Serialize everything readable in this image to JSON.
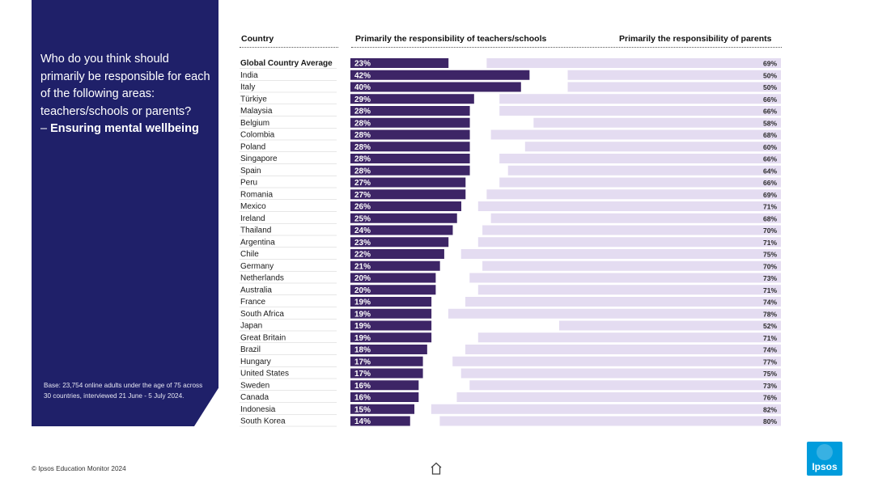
{
  "question": {
    "line1": "Who do you think should primarily be responsible for each of the following areas: teachers/schools or parents?",
    "line2_prefix": "–",
    "line2_emph": "Ensuring mental wellbeing"
  },
  "base_note": "Base: 23,754 online adults under the age of 75 across 30 countries, interviewed 21 June - 5 July 2024.",
  "footer": {
    "copyright": "© Ipsos Education Monitor 2024"
  },
  "logo": {
    "text": "Ipsos",
    "color": "#009cdc"
  },
  "colors": {
    "teachers": "#3d2566",
    "parents": "#e4dcf1",
    "panel": "#1f2069"
  },
  "chart_data": {
    "type": "bar",
    "title": "Who do you think should primarily be responsible for each of the following areas: teachers/schools or parents? – Ensuring mental wellbeing",
    "column_headers": {
      "country": "Country",
      "teachers": "Primarily the responsibility of teachers/schools",
      "parents": "Primarily the responsibility of parents"
    },
    "categories": [
      "Global Country Average",
      "India",
      "Italy",
      "Türkiye",
      "Malaysia",
      "Belgium",
      "Colombia",
      "Poland",
      "Singapore",
      "Spain",
      "Peru",
      "Romania",
      "Mexico",
      "Ireland",
      "Thailand",
      "Argentina",
      "Chile",
      "Germany",
      "Netherlands",
      "Australia",
      "France",
      "South Africa",
      "Japan",
      "Great Britain",
      "Brazil",
      "Hungary",
      "United States",
      "Sweden",
      "Canada",
      "Indonesia",
      "South Korea"
    ],
    "series": [
      {
        "name": "Primarily the responsibility of teachers/schools",
        "values": [
          23,
          42,
          40,
          29,
          28,
          28,
          28,
          28,
          28,
          28,
          27,
          27,
          26,
          25,
          24,
          23,
          22,
          21,
          20,
          20,
          19,
          19,
          19,
          19,
          18,
          17,
          17,
          16,
          16,
          15,
          14
        ]
      },
      {
        "name": "Primarily the responsibility of parents",
        "values": [
          69,
          50,
          50,
          66,
          66,
          58,
          68,
          60,
          66,
          64,
          66,
          69,
          71,
          68,
          70,
          71,
          75,
          70,
          73,
          71,
          74,
          78,
          52,
          71,
          74,
          77,
          75,
          73,
          76,
          82,
          80
        ]
      }
    ],
    "unit": "%"
  }
}
